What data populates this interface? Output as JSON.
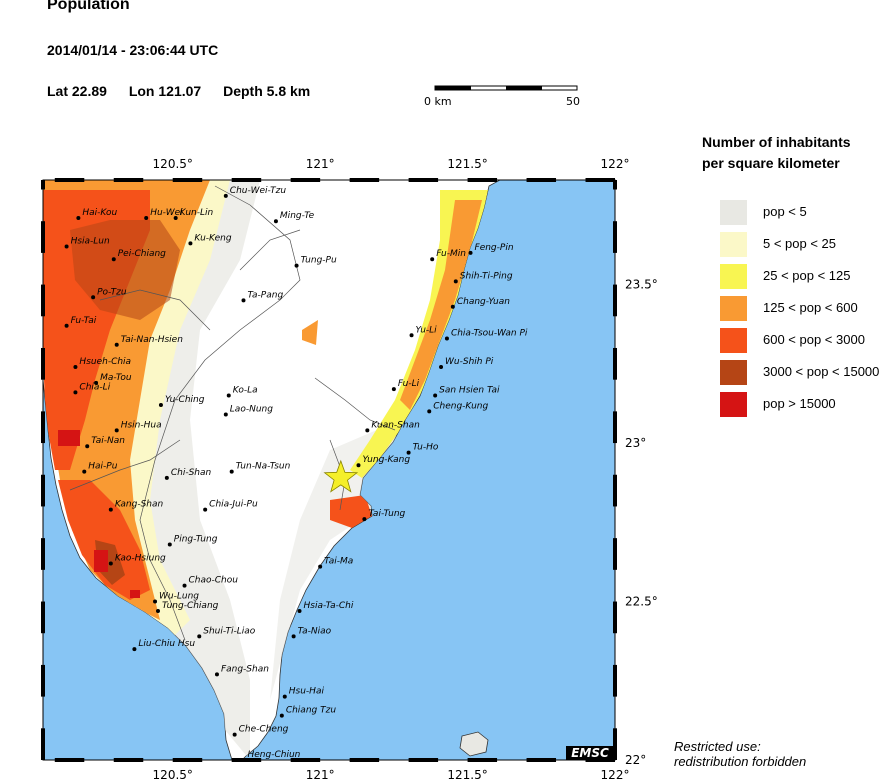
{
  "header": {
    "title": "Population",
    "datetime": "2014/01/14 - 23:06:44 UTC",
    "lat_text": "Lat 22.89",
    "lon_text": "Lon 121.07",
    "depth_text": "Depth  5.8 km"
  },
  "scale": {
    "left_label": "0 km",
    "right_label": "50 km"
  },
  "legend": {
    "title_line1": "Number of inhabitants",
    "title_line2": "per square kilometer",
    "items": [
      {
        "label": "pop < 5",
        "color": "#e8e8e3"
      },
      {
        "label": "5 < pop < 25",
        "color": "#fbf8c8"
      },
      {
        "label": "25 < pop < 125",
        "color": "#f8f552"
      },
      {
        "label": "125 < pop < 600",
        "color": "#f99a33"
      },
      {
        "label": "600 < pop < 3000",
        "color": "#f5521a"
      },
      {
        "label": "3000 < pop < 15000",
        "color": "#b54515"
      },
      {
        "label": "pop > 15000",
        "color": "#d51414"
      }
    ]
  },
  "footer": {
    "line1": "Restricted use:",
    "line2": "redistribution forbidden"
  },
  "badge": "EMSC",
  "map": {
    "lon_ticks": [
      {
        "lon": 120.5,
        "label": "120.5°"
      },
      {
        "lon": 121.0,
        "label": "121°"
      },
      {
        "lon": 121.5,
        "label": "121.5°"
      },
      {
        "lon": 122.0,
        "label": "122°"
      }
    ],
    "lat_ticks": [
      {
        "lat": 23.5,
        "label": "23.5°"
      },
      {
        "lat": 23.0,
        "label": "23°"
      },
      {
        "lat": 22.5,
        "label": "22.5°"
      },
      {
        "lat": 22.0,
        "label": "22°"
      }
    ],
    "epicenter": {
      "lat": 22.89,
      "lon": 121.07
    },
    "cities": [
      {
        "name": "Chu-Wei-Tzu",
        "lat": 23.78,
        "lon": 120.68
      },
      {
        "name": "Hai-Kou",
        "lat": 23.71,
        "lon": 120.18
      },
      {
        "name": "Hu-Wei",
        "lat": 23.71,
        "lon": 120.41
      },
      {
        "name": "Kun-Lin",
        "lat": 23.71,
        "lon": 120.51
      },
      {
        "name": "Ming-Te",
        "lat": 23.7,
        "lon": 120.85
      },
      {
        "name": "Hsia-Lun",
        "lat": 23.62,
        "lon": 120.14
      },
      {
        "name": "Ku-Keng",
        "lat": 23.63,
        "lon": 120.56
      },
      {
        "name": "Pei-Chiang",
        "lat": 23.58,
        "lon": 120.3
      },
      {
        "name": "Tung-Pu",
        "lat": 23.56,
        "lon": 120.92
      },
      {
        "name": "Fu-Min",
        "lat": 23.58,
        "lon": 121.38
      },
      {
        "name": "Feng-Pin",
        "lat": 23.6,
        "lon": 121.51
      },
      {
        "name": "Shih-Ti-Ping",
        "lat": 23.51,
        "lon": 121.46
      },
      {
        "name": "Po-Tzu",
        "lat": 23.46,
        "lon": 120.23
      },
      {
        "name": "Ta-Pang",
        "lat": 23.45,
        "lon": 120.74
      },
      {
        "name": "Chang-Yuan",
        "lat": 23.43,
        "lon": 121.45
      },
      {
        "name": "Fu-Tai",
        "lat": 23.37,
        "lon": 120.14
      },
      {
        "name": "Yu-Li",
        "lat": 23.34,
        "lon": 121.31
      },
      {
        "name": "Chia-Tsou-Wan Pi",
        "lat": 23.33,
        "lon": 121.43
      },
      {
        "name": "Tai-Nan-Hsien",
        "lat": 23.31,
        "lon": 120.31
      },
      {
        "name": "Hsueh-Chia",
        "lat": 23.24,
        "lon": 120.17
      },
      {
        "name": "Wu-Shih Pi",
        "lat": 23.24,
        "lon": 121.41
      },
      {
        "name": "Ma-Tou",
        "lat": 23.19,
        "lon": 120.24
      },
      {
        "name": "Chia-Li",
        "lat": 23.16,
        "lon": 120.17
      },
      {
        "name": "Fu-Li",
        "lat": 23.17,
        "lon": 121.25
      },
      {
        "name": "Ko-La",
        "lat": 23.15,
        "lon": 120.69
      },
      {
        "name": "San Hsien Tai",
        "lat": 23.15,
        "lon": 121.39
      },
      {
        "name": "Yu-Ching",
        "lat": 23.12,
        "lon": 120.46
      },
      {
        "name": "Cheng-Kung",
        "lat": 23.1,
        "lon": 121.37
      },
      {
        "name": "Lao-Nung",
        "lat": 23.09,
        "lon": 120.68
      },
      {
        "name": "Kuan-Shan",
        "lat": 23.04,
        "lon": 121.16
      },
      {
        "name": "Hsin-Hua",
        "lat": 23.04,
        "lon": 120.31
      },
      {
        "name": "Tai-Nan",
        "lat": 22.99,
        "lon": 120.21
      },
      {
        "name": "Tu-Ho",
        "lat": 22.97,
        "lon": 121.3
      },
      {
        "name": "Yung-Kang",
        "lat": 22.93,
        "lon": 121.13
      },
      {
        "name": "Hai-Pu",
        "lat": 22.91,
        "lon": 120.2
      },
      {
        "name": "Chi-Shan",
        "lat": 22.89,
        "lon": 120.48
      },
      {
        "name": "Tun-Na-Tsun",
        "lat": 22.91,
        "lon": 120.7
      },
      {
        "name": "Kang-Shan",
        "lat": 22.79,
        "lon": 120.29
      },
      {
        "name": "Chia-Jui-Pu",
        "lat": 22.79,
        "lon": 120.61
      },
      {
        "name": "Tai-Tung",
        "lat": 22.76,
        "lon": 121.15
      },
      {
        "name": "Ping-Tung",
        "lat": 22.68,
        "lon": 120.49
      },
      {
        "name": "Kao-Hsiung",
        "lat": 22.62,
        "lon": 120.29
      },
      {
        "name": "Tai-Ma",
        "lat": 22.61,
        "lon": 121.0
      },
      {
        "name": "Chao-Chou",
        "lat": 22.55,
        "lon": 120.54
      },
      {
        "name": "Wu-Lung",
        "lat": 22.5,
        "lon": 120.44
      },
      {
        "name": "Tung-Chiang",
        "lat": 22.47,
        "lon": 120.45
      },
      {
        "name": "Hsia-Ta-Chi",
        "lat": 22.47,
        "lon": 120.93
      },
      {
        "name": "Shui-Ti-Liao",
        "lat": 22.39,
        "lon": 120.59
      },
      {
        "name": "Ta-Niao",
        "lat": 22.39,
        "lon": 120.91
      },
      {
        "name": "Liu-Chiu Hsu",
        "lat": 22.35,
        "lon": 120.37
      },
      {
        "name": "Fang-Shan",
        "lat": 22.27,
        "lon": 120.65
      },
      {
        "name": "Hsu-Hai",
        "lat": 22.2,
        "lon": 120.88
      },
      {
        "name": "Chiang Tzu",
        "lat": 22.14,
        "lon": 120.87
      },
      {
        "name": "Che-Cheng",
        "lat": 22.08,
        "lon": 120.71
      },
      {
        "name": "Heng-Chiun",
        "lat": 22.0,
        "lon": 120.74
      }
    ]
  }
}
